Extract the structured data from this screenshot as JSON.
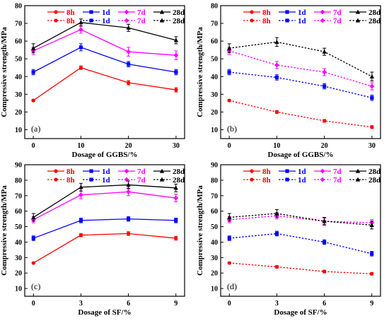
{
  "colors": {
    "8h": "#ff0000",
    "1d": "#0000ff",
    "7d": "#ff00ff",
    "28d": "#000000"
  },
  "legend_labels": [
    "8h",
    "1d",
    "7d",
    "28d"
  ],
  "chart_data": [
    {
      "type": "line",
      "panel_label": "(a)",
      "xlabel": "Dosage of GGBS/%",
      "ylabel": "Compressive strength/MPa",
      "x": [
        0,
        10,
        20,
        30
      ],
      "xticks": [
        "0",
        "10",
        "20",
        "30"
      ],
      "xlim": [
        -1.8,
        31.8
      ],
      "ylim": [
        5,
        80
      ],
      "yticks": [
        10,
        20,
        30,
        40,
        50,
        60,
        70,
        80
      ],
      "grid": false,
      "line_style": "solid",
      "legend_rows": [
        [
          "8h",
          "1d",
          "7d",
          "28d"
        ],
        [
          "8h",
          "1d",
          "7d",
          "28d"
        ]
      ],
      "legend_styles": [
        "solid",
        "dotted"
      ],
      "series": [
        {
          "name": "8h",
          "values": [
            26.5,
            45,
            36.5,
            32.5
          ],
          "errors": [
            0.5,
            1.0,
            1.2,
            1.2
          ]
        },
        {
          "name": "1d",
          "values": [
            42.5,
            56.5,
            47,
            42.5
          ],
          "errors": [
            1.5,
            2.0,
            1.5,
            1.5
          ]
        },
        {
          "name": "7d",
          "values": [
            54.5,
            66.5,
            54,
            52
          ],
          "errors": [
            2.0,
            2.0,
            2.5,
            2.5
          ]
        },
        {
          "name": "28d",
          "values": [
            56,
            70.5,
            67.5,
            60.5
          ],
          "errors": [
            2.5,
            2.0,
            2.0,
            2.0
          ]
        }
      ]
    },
    {
      "type": "line",
      "panel_label": "(b)",
      "xlabel": "Dosage of GGBS/%",
      "ylabel": "Compressive strength/MPa",
      "x": [
        0,
        10,
        20,
        30
      ],
      "xticks": [
        "0",
        "10",
        "20",
        "30"
      ],
      "xlim": [
        -1.8,
        31.8
      ],
      "ylim": [
        5,
        80
      ],
      "yticks": [
        10,
        20,
        30,
        40,
        50,
        60,
        70,
        80
      ],
      "grid": false,
      "line_style": "dotted",
      "legend_rows": [
        [
          "8h",
          "1d",
          "7d",
          "28d"
        ],
        [
          "8h",
          "1d",
          "7d",
          "28d"
        ]
      ],
      "legend_styles": [
        "solid",
        "dotted"
      ],
      "series": [
        {
          "name": "8h",
          "values": [
            26.5,
            20,
            15,
            11.5
          ],
          "errors": [
            0.5,
            0.8,
            0.8,
            0.8
          ]
        },
        {
          "name": "1d",
          "values": [
            42.5,
            39.5,
            34.5,
            28
          ],
          "errors": [
            1.5,
            1.5,
            1.5,
            1.5
          ]
        },
        {
          "name": "7d",
          "values": [
            54.5,
            46.5,
            42.5,
            34.5
          ],
          "errors": [
            2.0,
            2.0,
            2.0,
            2.0
          ]
        },
        {
          "name": "28d",
          "values": [
            56,
            59.5,
            54,
            40
          ],
          "errors": [
            2.5,
            2.5,
            2.0,
            2.5
          ]
        }
      ]
    },
    {
      "type": "line",
      "panel_label": "(c)",
      "xlabel": "Dosage of SF/%",
      "ylabel": "Compressive strength/MPa",
      "x": [
        0,
        3,
        6,
        9
      ],
      "xticks": [
        "0",
        "3",
        "6",
        "9"
      ],
      "xlim": [
        -0.55,
        9.55
      ],
      "ylim": [
        5,
        90
      ],
      "yticks": [
        10,
        20,
        30,
        40,
        50,
        60,
        70,
        80,
        90
      ],
      "grid": false,
      "line_style": "solid",
      "legend_rows": [
        [
          "8h",
          "1d",
          "7d",
          "28d"
        ],
        [
          "8h",
          "1d",
          "7d",
          "28d"
        ]
      ],
      "legend_styles": [
        "solid",
        "dotted"
      ],
      "series": [
        {
          "name": "8h",
          "values": [
            26.5,
            44.5,
            45.5,
            42.5
          ],
          "errors": [
            0.5,
            1.0,
            1.2,
            1.2
          ]
        },
        {
          "name": "1d",
          "values": [
            42.5,
            54,
            55,
            54
          ],
          "errors": [
            1.5,
            1.5,
            1.5,
            1.5
          ]
        },
        {
          "name": "7d",
          "values": [
            54.5,
            70.5,
            72.5,
            68.5
          ],
          "errors": [
            2.0,
            2.5,
            2.5,
            2.5
          ]
        },
        {
          "name": "28d",
          "values": [
            56,
            75.5,
            77,
            75
          ],
          "errors": [
            2.5,
            2.5,
            2.5,
            2.5
          ]
        }
      ]
    },
    {
      "type": "line",
      "panel_label": "(d)",
      "xlabel": "Dosage of SF/%",
      "ylabel": "Compressive strength/MPa",
      "x": [
        0,
        3,
        6,
        9
      ],
      "xticks": [
        "0",
        "3",
        "6",
        "9"
      ],
      "xlim": [
        -0.55,
        9.55
      ],
      "ylim": [
        5,
        90
      ],
      "yticks": [
        10,
        20,
        30,
        40,
        50,
        60,
        70,
        80,
        90
      ],
      "grid": false,
      "line_style": "dotted",
      "legend_rows": [
        [
          "8h",
          "1d",
          "7d",
          "28d"
        ],
        [
          "8h",
          "1d",
          "7d",
          "28d"
        ]
      ],
      "legend_styles": [
        "solid",
        "dotted"
      ],
      "series": [
        {
          "name": "8h",
          "values": [
            26.5,
            24,
            21,
            19.5
          ],
          "errors": [
            0.5,
            0.8,
            0.8,
            0.8
          ]
        },
        {
          "name": "1d",
          "values": [
            42.5,
            45.5,
            40,
            32.5
          ],
          "errors": [
            1.5,
            1.5,
            1.5,
            1.5
          ]
        },
        {
          "name": "7d",
          "values": [
            54.5,
            57,
            53.5,
            52.5
          ],
          "errors": [
            2.0,
            2.0,
            2.0,
            2.0
          ]
        },
        {
          "name": "28d",
          "values": [
            56,
            58.5,
            53.5,
            51
          ],
          "errors": [
            2.5,
            2.5,
            2.5,
            2.5
          ]
        }
      ]
    }
  ]
}
